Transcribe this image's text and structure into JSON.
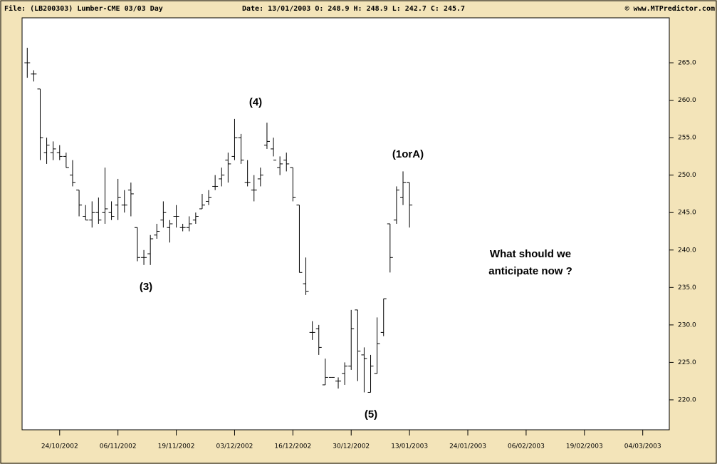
{
  "chart_data": {
    "type": "ohlc",
    "title": "File: (LB200303) Lumber-CME 03/03 Day",
    "subtitle": "Date: 13/01/2003   O: 248.9   H: 248.9   L: 242.7   C: 245.7",
    "credit": "© www.MTPredictor.com",
    "annotations": [
      "(3)",
      "(4)",
      "(1orA)",
      "(5)",
      "What should we",
      "anticipate now ?"
    ],
    "color": "#000000",
    "xlim": [
      -0.8,
      99.1
    ],
    "xticks": [
      {
        "value": 5,
        "label": "24/10/2002"
      },
      {
        "value": 14,
        "label": "06/11/2002"
      },
      {
        "value": 23,
        "label": "19/11/2002"
      },
      {
        "value": 32,
        "label": "03/12/2002"
      },
      {
        "value": 41,
        "label": "16/12/2002"
      },
      {
        "value": 50,
        "label": "30/12/2002"
      },
      {
        "value": 59,
        "label": "13/01/2003"
      },
      {
        "value": 68,
        "label": "24/01/2003"
      },
      {
        "value": 77,
        "label": "06/02/2003"
      },
      {
        "value": 86,
        "label": "19/02/2003"
      },
      {
        "value": 95,
        "label": "04/03/2003"
      }
    ],
    "ylim": [
      216,
      271
    ],
    "yticks": [
      {
        "value": 220,
        "label": "220.0"
      },
      {
        "value": 225,
        "label": "225.0"
      },
      {
        "value": 230,
        "label": "230.0"
      },
      {
        "value": 235,
        "label": "235.0"
      },
      {
        "value": 240,
        "label": "240.0"
      },
      {
        "value": 245,
        "label": "245.0"
      },
      {
        "value": 250,
        "label": "250.0"
      },
      {
        "value": 255,
        "label": "255.0"
      },
      {
        "value": 260,
        "label": "260.0"
      },
      {
        "value": 265,
        "label": "265.0"
      }
    ],
    "open": [
      265,
      263.5,
      261.5,
      253,
      253,
      253,
      252.5,
      250,
      248,
      244.5,
      244,
      245,
      245,
      245,
      246,
      246,
      248,
      243,
      239,
      239.5,
      242,
      244,
      243,
      244.5,
      243,
      243,
      244,
      245.5,
      246.5,
      248.5,
      249.5,
      252,
      252.5,
      255,
      249,
      248,
      249.5,
      254,
      253.5,
      251,
      252,
      251,
      246,
      235.5,
      229,
      229.5,
      222,
      223,
      222.5,
      223.5,
      224.5,
      232,
      226,
      221,
      223.5,
      229,
      243.5,
      244,
      247,
      249
    ],
    "high": [
      267,
      264,
      261.5,
      255,
      254.5,
      254,
      253,
      252,
      248,
      246,
      246.5,
      247,
      251,
      246.5,
      249.5,
      248,
      249,
      243,
      240,
      242,
      243.5,
      246.5,
      244,
      246,
      243.5,
      244.5,
      245,
      247.5,
      248,
      250,
      251,
      253,
      257.5,
      255.5,
      252,
      250,
      251,
      257,
      255,
      252.5,
      253,
      251,
      246,
      239,
      230.5,
      230,
      225.5,
      223,
      223,
      225,
      232,
      232,
      227,
      226,
      231,
      233.5,
      243.5,
      248.5,
      250.5,
      249
    ],
    "low": [
      263,
      262.5,
      252,
      251.5,
      252,
      252,
      251,
      248.5,
      244.5,
      244,
      243,
      243.5,
      243.5,
      244,
      244,
      245,
      244.5,
      238.5,
      238,
      238,
      241.5,
      243,
      241,
      243,
      242.5,
      242.5,
      243.5,
      245.5,
      246,
      248,
      248.5,
      249,
      252,
      251.5,
      248.5,
      246.5,
      248.5,
      253.5,
      252.5,
      250,
      250.5,
      246.5,
      237,
      234,
      228,
      226,
      222,
      223,
      221.5,
      222,
      224,
      222.5,
      221,
      221,
      223.5,
      228.5,
      237,
      243.5,
      246,
      243
    ],
    "close": [
      265,
      263.5,
      255,
      254,
      253.5,
      252.5,
      251,
      249,
      246,
      244,
      245,
      244,
      245.5,
      244.5,
      247,
      246,
      247.5,
      239,
      239,
      241.5,
      242.5,
      245,
      243.5,
      244.5,
      243,
      243.5,
      244.5,
      246,
      247,
      248.5,
      250,
      251.5,
      255,
      252,
      249,
      248,
      250,
      254.5,
      252,
      251.5,
      251.5,
      247,
      237,
      234.5,
      229,
      227,
      223,
      223,
      222.5,
      224.5,
      229.5,
      226.5,
      225.5,
      224.5,
      227.5,
      233.5,
      239,
      248,
      249,
      246
    ]
  }
}
